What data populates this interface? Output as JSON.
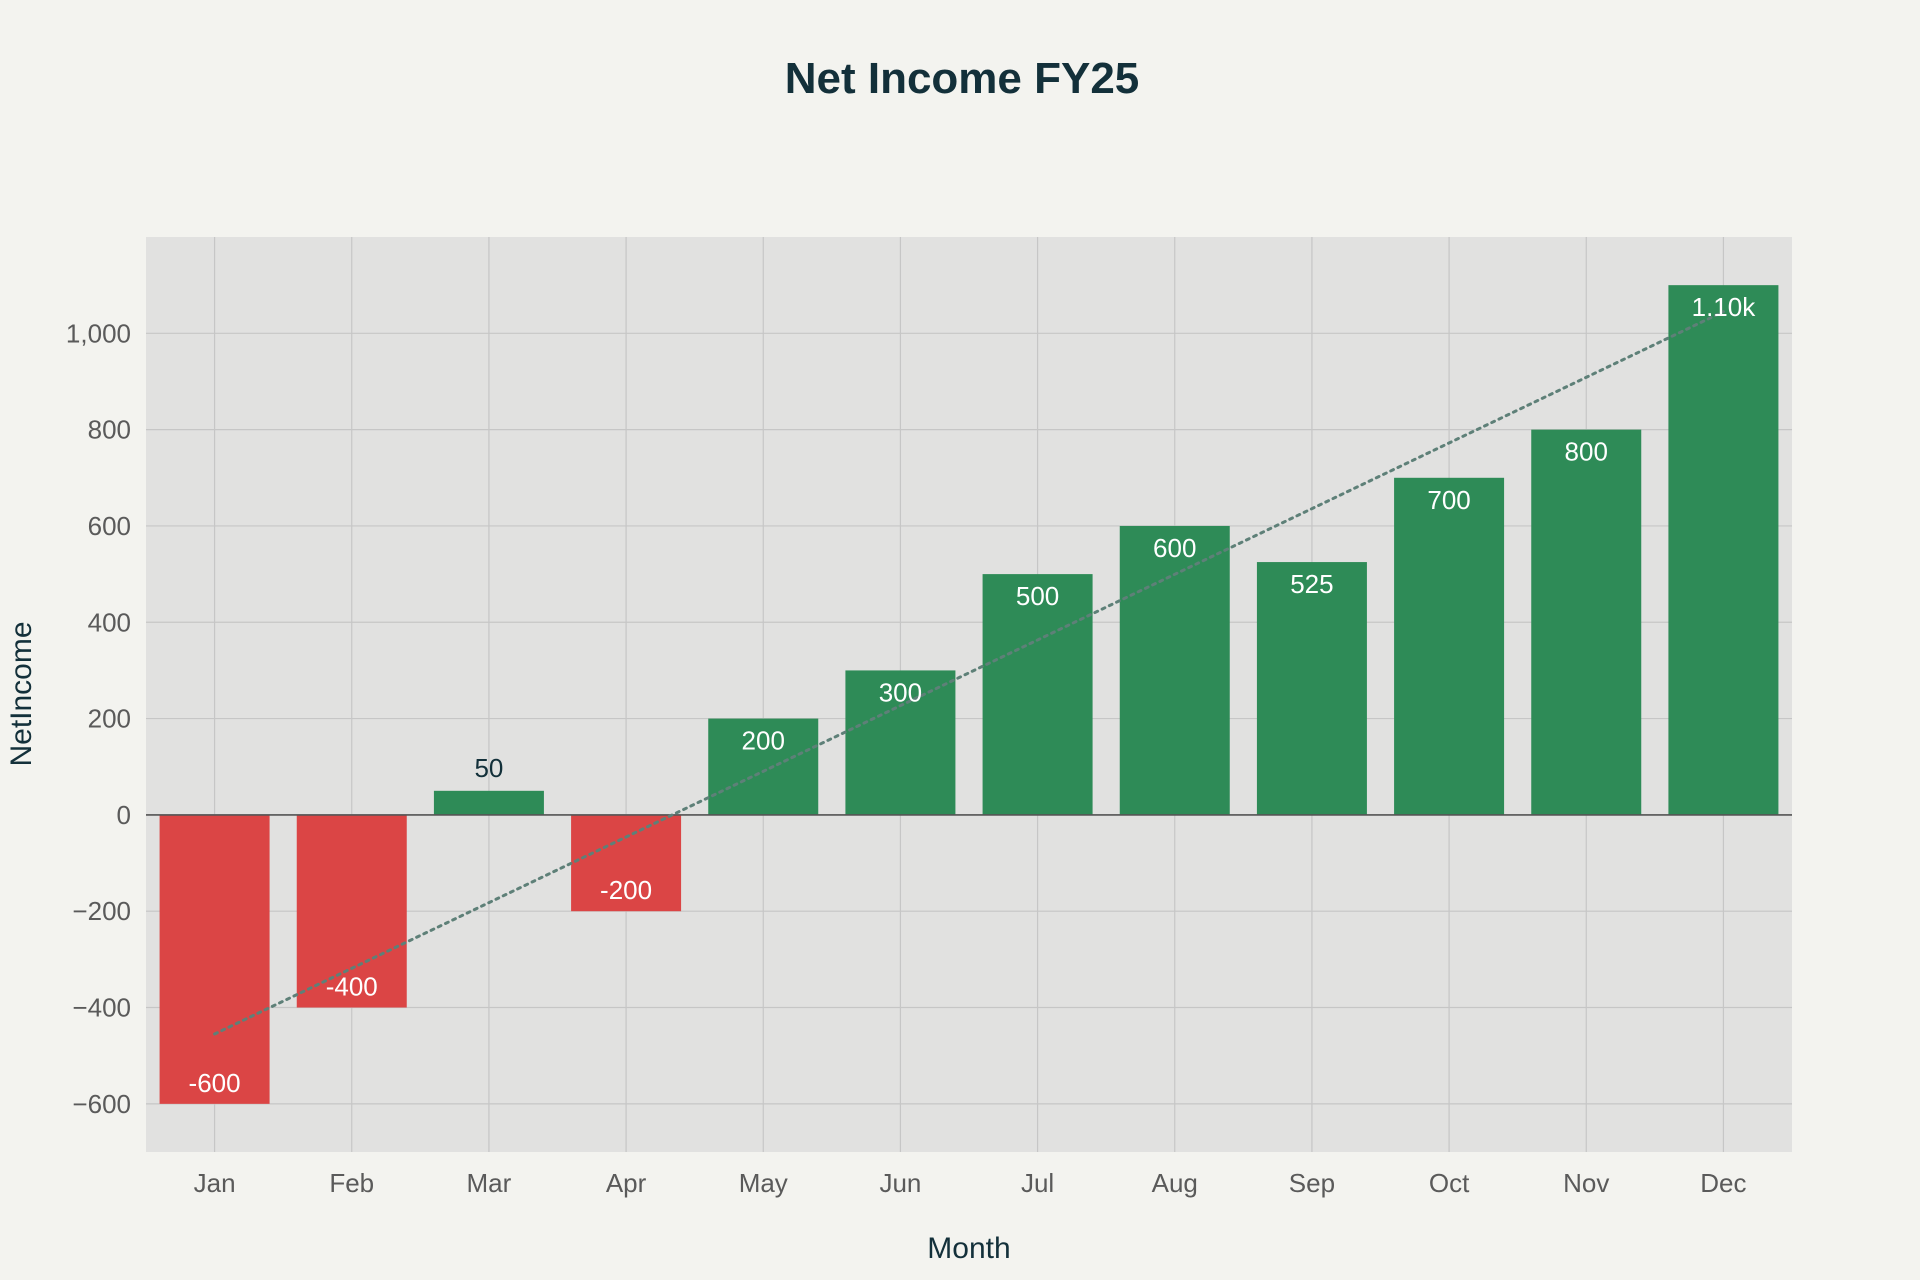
{
  "chart_data": {
    "type": "bar",
    "title": "Net Income FY25",
    "xlabel": "Month",
    "ylabel": "NetIncome",
    "categories": [
      "Jan",
      "Feb",
      "Mar",
      "Apr",
      "May",
      "Jun",
      "Jul",
      "Aug",
      "Sep",
      "Oct",
      "Nov",
      "Dec"
    ],
    "values": [
      -600,
      -400,
      50,
      -200,
      200,
      300,
      500,
      600,
      525,
      700,
      800,
      1100
    ],
    "data_labels": [
      "-600",
      "-400",
      "50",
      "-200",
      "200",
      "300",
      "500",
      "600",
      "525",
      "700",
      "800",
      "1.10k"
    ],
    "ylim": [
      -700,
      1200
    ],
    "yticks": [
      -600,
      -400,
      -200,
      0,
      200,
      400,
      600,
      800,
      1000
    ],
    "ytick_labels": [
      "−600",
      "−400",
      "−200",
      "0",
      "200",
      "400",
      "600",
      "800",
      "1,000"
    ],
    "trendline": {
      "style": "dotted",
      "x_start": "Jan",
      "y_start": -455,
      "x_end": "Dec",
      "y_end": 1045
    },
    "grid": true,
    "colors": {
      "positive": "#2e8b57",
      "negative": "#db4545",
      "trend": "#5e8078",
      "plot_background": "#e1e1e0",
      "page_background": "#f3f3ef",
      "grid": "#c6c6c6",
      "zero_line": "#555555"
    }
  }
}
